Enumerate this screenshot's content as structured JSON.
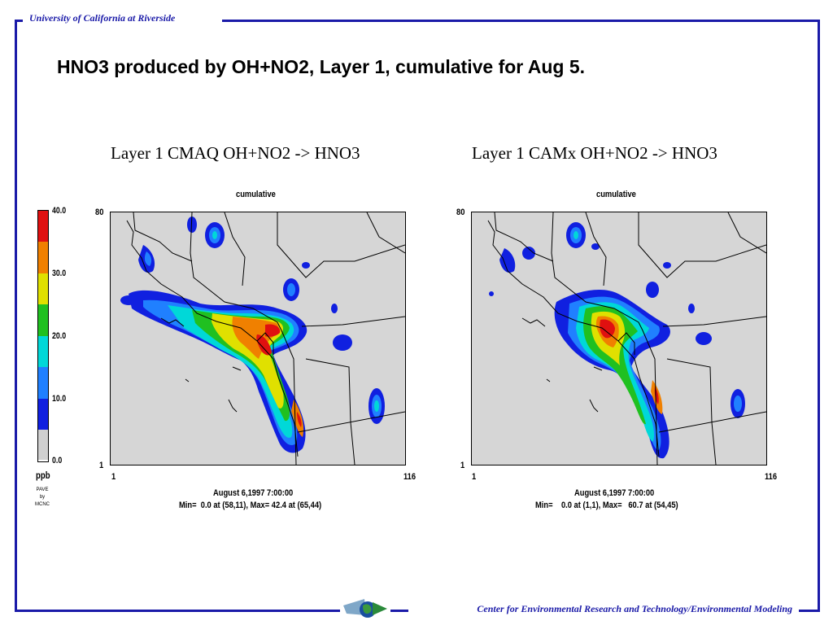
{
  "header": {
    "institution": "University of California at Riverside"
  },
  "footer": {
    "center": "Center for Environmental Research and Technology/Environmental Modeling"
  },
  "slide": {
    "title": "HNO3 produced by OH+NO2, Layer 1, cumulative for Aug 5."
  },
  "colorbar": {
    "labels": [
      "40.0",
      "30.0",
      "20.0",
      "10.0",
      "0.0"
    ],
    "unit": "ppb",
    "credit_line1": "PAVE",
    "credit_line2": "by",
    "credit_line3": "MCNC",
    "colors": [
      "#e01010",
      "#f08000",
      "#e0e000",
      "#20c020",
      "#00d8d8",
      "#2080ff",
      "#1020e0",
      "#d0d0d0"
    ]
  },
  "panels": [
    {
      "title": "Layer 1 CMAQ  OH+NO2 -> HNO3",
      "subtitle": "cumulative",
      "y_max": "80",
      "y_min": "1",
      "x_min": "1",
      "x_max": "116",
      "date": "August 6,1997 7:00:00",
      "stats": "Min=  0.0 at (58,11), Max= 42.4 at (65,44)"
    },
    {
      "title": "Layer 1  CAMx  OH+NO2 -> HNO3",
      "subtitle": "cumulative",
      "y_max": "80",
      "y_min": "1",
      "x_min": "1",
      "x_max": "116",
      "date": "August 6,1997 7:00:00",
      "stats": "Min=    0.0 at (1,1), Max=   60.7 at (54,45)"
    }
  ]
}
